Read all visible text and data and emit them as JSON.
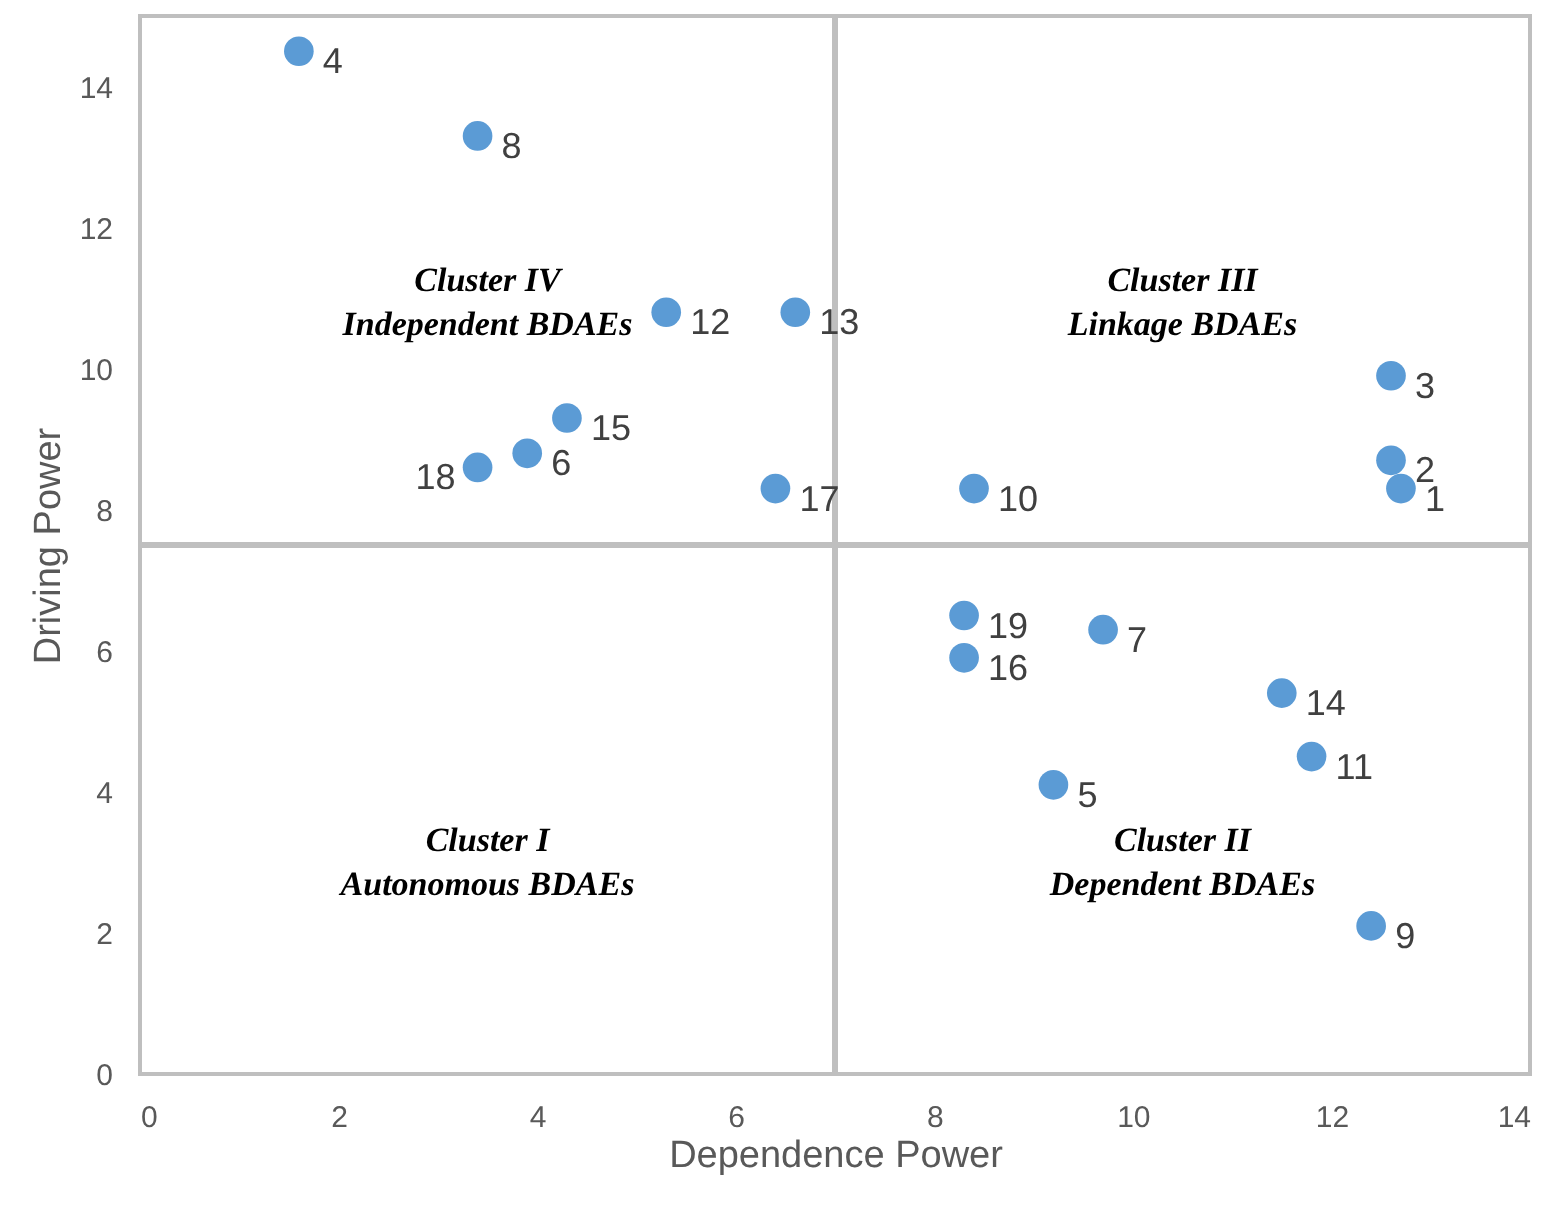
{
  "chart_data": {
    "type": "scatter",
    "xlabel": "Dependence Power",
    "ylabel": "Driving Power",
    "xlim": [
      0,
      14
    ],
    "xticks": [
      0,
      2,
      4,
      6,
      8,
      10,
      12,
      14
    ],
    "ylim": [
      0,
      15
    ],
    "yticks": [
      0,
      2,
      4,
      6,
      8,
      10,
      12,
      14
    ],
    "marker": "circle",
    "series": [
      {
        "name": "1",
        "color": "#5b9bd5",
        "x": [
          12.7
        ],
        "values": [
          8.3
        ]
      },
      {
        "name": "2",
        "color": "#5b9bd5",
        "x": [
          12.6
        ],
        "values": [
          8.7
        ]
      },
      {
        "name": "3",
        "color": "#5b9bd5",
        "x": [
          12.6
        ],
        "values": [
          9.9
        ]
      },
      {
        "name": "4",
        "color": "#5b9bd5",
        "x": [
          1.6
        ],
        "values": [
          14.5
        ]
      },
      {
        "name": "5",
        "color": "#5b9bd5",
        "x": [
          9.2
        ],
        "values": [
          4.1
        ]
      },
      {
        "name": "6",
        "color": "#5b9bd5",
        "x": [
          3.9
        ],
        "values": [
          8.8
        ]
      },
      {
        "name": "7",
        "color": "#5b9bd5",
        "x": [
          9.7
        ],
        "values": [
          6.3
        ]
      },
      {
        "name": "8",
        "color": "#5b9bd5",
        "x": [
          3.4
        ],
        "values": [
          13.3
        ]
      },
      {
        "name": "9",
        "color": "#5b9bd5",
        "x": [
          12.4
        ],
        "values": [
          2.1
        ]
      },
      {
        "name": "10",
        "color": "#5b9bd5",
        "x": [
          8.4
        ],
        "values": [
          8.3
        ]
      },
      {
        "name": "11",
        "color": "#5b9bd5",
        "x": [
          11.8
        ],
        "values": [
          4.5
        ]
      },
      {
        "name": "12",
        "color": "#5b9bd5",
        "x": [
          5.3
        ],
        "values": [
          10.8
        ]
      },
      {
        "name": "13",
        "color": "#5b9bd5",
        "x": [
          6.6
        ],
        "values": [
          10.8
        ]
      },
      {
        "name": "14",
        "color": "#5b9bd5",
        "x": [
          11.5
        ],
        "values": [
          5.4
        ]
      },
      {
        "name": "15",
        "color": "#5b9bd5",
        "x": [
          4.3
        ],
        "values": [
          9.3
        ]
      },
      {
        "name": "16",
        "color": "#5b9bd5",
        "x": [
          8.3
        ],
        "values": [
          5.9
        ]
      },
      {
        "name": "17",
        "color": "#5b9bd5",
        "x": [
          6.4
        ],
        "values": [
          8.3
        ]
      },
      {
        "name": "18",
        "color": "#5b9bd5",
        "x": [
          3.4
        ],
        "values": [
          8.6
        ]
      },
      {
        "name": "19",
        "color": "#5b9bd5",
        "x": [
          8.3
        ],
        "values": [
          6.5
        ]
      }
    ],
    "ref_lines": [
      {
        "axis": "x",
        "value": 7,
        "color": "#bfbfbf"
      },
      {
        "axis": "y",
        "value": 7.5,
        "color": "#bfbfbf"
      }
    ],
    "annotations": [
      "Cluster IV\nIndependent BDAEs",
      "Cluster III\nLinkage BDAEs",
      "Cluster I\nAutonomous BDAEs",
      "Cluster II\nDependent BDAEs"
    ]
  }
}
